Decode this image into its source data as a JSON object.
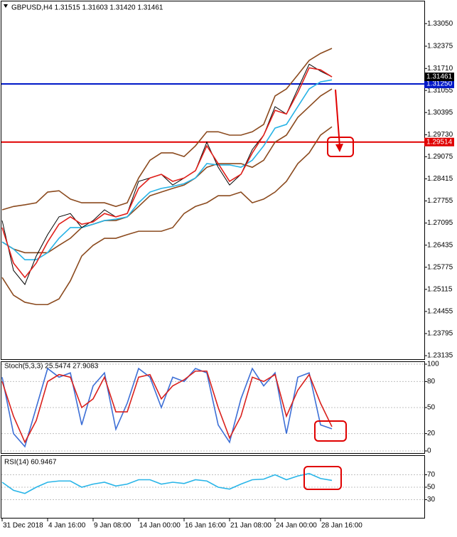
{
  "chart_data": [
    {
      "type": "line",
      "title": "GBPUSD,H4  1.31515 1.31603 1.31420 1.31461",
      "categories": [
        "31 Dec 2018",
        null,
        null,
        null,
        "4 Jan 16:00",
        null,
        null,
        null,
        "9 Jan 08:00",
        null,
        null,
        null,
        "14 Jan 00:00",
        null,
        null,
        null,
        "16 Jan 16:00",
        null,
        null,
        null,
        "21 Jan 08:00",
        null,
        null,
        null,
        "24 Jan 00:00",
        null,
        null,
        null,
        "28 Jan 16:00",
        null
      ],
      "series": [
        {
          "color": "#8b4a1e",
          "values": [
            1.2749,
            1.2759,
            1.2764,
            1.277,
            1.2802,
            1.2806,
            1.2781,
            1.277,
            1.277,
            1.277,
            1.2759,
            1.277,
            1.2844,
            1.2897,
            1.2919,
            1.2919,
            1.2908,
            1.294,
            1.2982,
            1.2982,
            1.2972,
            1.2972,
            1.2982,
            1.3004,
            1.3089,
            1.311,
            1.3152,
            1.3195,
            1.3216,
            1.3231
          ]
        },
        {
          "color": "#8b4a1e",
          "values": [
            1.2653,
            1.2632,
            1.2621,
            1.2621,
            1.2621,
            1.2643,
            1.2664,
            1.2696,
            1.2706,
            1.2717,
            1.2717,
            1.2728,
            1.2759,
            1.2791,
            1.2802,
            1.2813,
            1.2823,
            1.2844,
            1.2876,
            1.2887,
            1.2887,
            1.2887,
            1.2876,
            1.2897,
            1.2951,
            1.2972,
            1.3025,
            1.3057,
            1.3089,
            1.311
          ]
        },
        {
          "color": "#8b4a1e",
          "values": [
            1.2547,
            1.2494,
            1.2473,
            1.2466,
            1.2466,
            1.2483,
            1.2537,
            1.2611,
            1.2643,
            1.2664,
            1.2664,
            1.2675,
            1.2685,
            1.2685,
            1.2685,
            1.2696,
            1.2738,
            1.2759,
            1.277,
            1.2791,
            1.2791,
            1.2802,
            1.277,
            1.2781,
            1.2802,
            1.2834,
            1.2887,
            1.2919,
            1.2972,
            1.2997
          ]
        },
        {
          "color": "#27b3e6",
          "values": [
            1.2653,
            1.2632,
            1.26,
            1.26,
            1.2621,
            1.2664,
            1.2696,
            1.2696,
            1.2706,
            1.2717,
            1.2721,
            1.2728,
            1.277,
            1.2802,
            1.2813,
            1.2819,
            1.2827,
            1.2844,
            1.2887,
            1.2883,
            1.2883,
            1.2876,
            1.2897,
            1.294,
            1.2993,
            1.3004,
            1.3057,
            1.311,
            1.3131,
            1.3137
          ]
        },
        {
          "color": "#000000",
          "values": [
            1.2717,
            1.2568,
            1.2526,
            1.2611,
            1.2675,
            1.2728,
            1.2738,
            1.2696,
            1.2717,
            1.2749,
            1.2728,
            1.2738,
            1.2834,
            1.2844,
            1.2855,
            1.2823,
            1.2844,
            1.2866,
            1.2951,
            1.2876,
            1.2823,
            1.2855,
            1.2929,
            1.2972,
            1.3057,
            1.3035,
            1.311,
            1.3184,
            1.3163,
            1.3146
          ]
        },
        {
          "color": "#e0201b",
          "values": [
            1.2696,
            1.259,
            1.2547,
            1.259,
            1.2653,
            1.2706,
            1.2728,
            1.2706,
            1.2713,
            1.2738,
            1.2728,
            1.2738,
            1.2813,
            1.2844,
            1.2855,
            1.2834,
            1.2844,
            1.2866,
            1.294,
            1.2887,
            1.2834,
            1.2855,
            1.2919,
            1.2972,
            1.3046,
            1.3035,
            1.3099,
            1.3173,
            1.3167,
            1.3146
          ]
        }
      ],
      "ylim": [
        1.2303,
        1.3367
      ],
      "yticks": [
        {
          "value": 1.3305,
          "label": "1.33050"
        },
        1.32375,
        {
          "value": 1.3171,
          "label": "1.31710"
        },
        1.31055,
        1.30395,
        {
          "value": 1.2973,
          "label": "1.29730"
        },
        1.29075,
        1.28415,
        1.27755,
        1.27095,
        1.26435,
        1.25775,
        1.25115,
        1.24455,
        1.23795,
        1.23135
      ],
      "hlines": [
        {
          "value": 1.3125,
          "label": "1.31250",
          "color": "#0018c8"
        },
        {
          "value": 1.29514,
          "label": "1.29514",
          "color": "#e00000"
        }
      ],
      "last_price": {
        "value": 1.31461,
        "label": "1.31461",
        "color": "#000000"
      }
    },
    {
      "type": "line",
      "title": "Stoch(5,3,3) 25.5474 27.9083",
      "series": [
        {
          "color": "#3d6fd6",
          "values": [
            85,
            20,
            5,
            50,
            95,
            85,
            90,
            30,
            75,
            90,
            25,
            55,
            95,
            85,
            50,
            85,
            80,
            95,
            90,
            30,
            10,
            60,
            95,
            75,
            90,
            20,
            85,
            90,
            30,
            25.5474
          ]
        },
        {
          "color": "#d9201c",
          "values": [
            80,
            40,
            10,
            35,
            80,
            88,
            85,
            50,
            60,
            85,
            45,
            45,
            85,
            88,
            60,
            75,
            82,
            92,
            92,
            50,
            15,
            40,
            85,
            80,
            88,
            40,
            70,
            88,
            55,
            27.9083
          ]
        }
      ],
      "ylim": [
        0,
        100
      ],
      "yticks": [
        0,
        20,
        50,
        80,
        100
      ]
    },
    {
      "type": "line",
      "title": "RSI(14) 60.9467",
      "series": [
        {
          "color": "#29b5e8",
          "values": [
            58,
            45,
            40,
            50,
            58,
            60,
            60,
            50,
            55,
            58,
            52,
            55,
            62,
            62,
            55,
            58,
            56,
            62,
            60,
            50,
            47,
            55,
            62,
            63,
            70,
            62,
            68,
            72,
            64,
            60.9467
          ]
        }
      ],
      "ylim": [
        10,
        98
      ],
      "yticks": [
        30,
        50,
        70
      ]
    }
  ]
}
